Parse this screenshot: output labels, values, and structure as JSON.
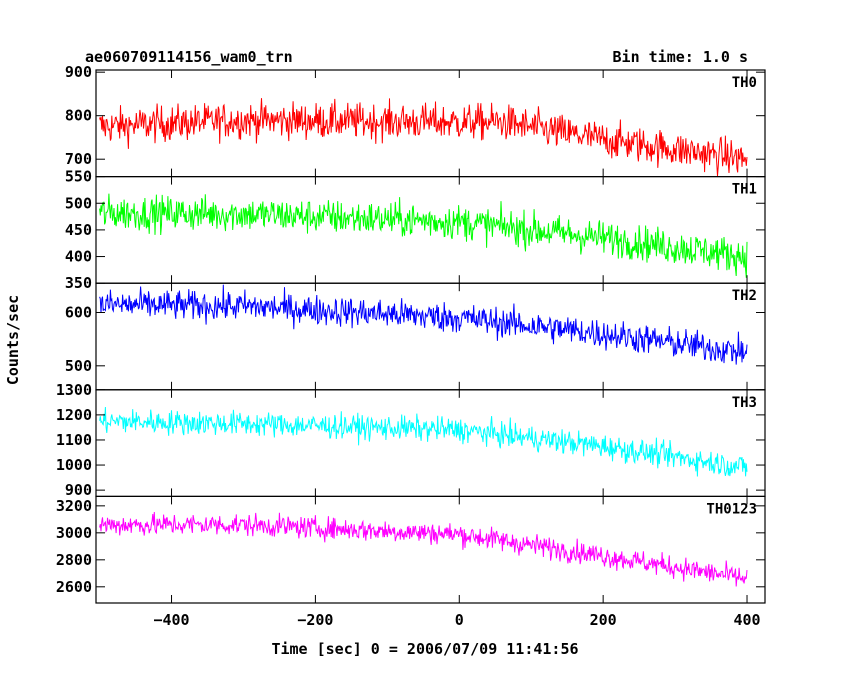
{
  "header": {
    "title": "ae060709114156_wam0_trn",
    "bin_time": "Bin time: 1.0 s"
  },
  "chart_data": {
    "type": "line",
    "xlabel": "Time [sec] 0 = 2006/07/09 11:41:56",
    "ylabel": "Counts/sec",
    "xlim": [
      -505,
      425
    ],
    "x_ticks": [
      -400,
      -200,
      0,
      200,
      400
    ],
    "x_range": [
      -500,
      400
    ],
    "x_step": 1,
    "grid": false,
    "panels": [
      {
        "name": "TH0",
        "color": "#ff0000",
        "ylim": [
          660,
          905
        ],
        "y_ticks": [
          700,
          800,
          900
        ],
        "trend": [
          [
            -500,
            775
          ],
          [
            -300,
            790
          ],
          [
            0,
            785
          ],
          [
            60,
            785
          ],
          [
            200,
            745
          ],
          [
            400,
            700
          ]
        ],
        "noise": 38
      },
      {
        "name": "TH1",
        "color": "#00ff00",
        "ylim": [
          350,
          550
        ],
        "y_ticks": [
          350,
          400,
          450,
          500,
          550
        ],
        "trend": [
          [
            -500,
            482
          ],
          [
            -300,
            480
          ],
          [
            0,
            465
          ],
          [
            200,
            435
          ],
          [
            400,
            400
          ]
        ],
        "noise": 30
      },
      {
        "name": "TH2",
        "color": "#0000ff",
        "ylim": [
          455,
          655
        ],
        "y_ticks": [
          500,
          600
        ],
        "trend": [
          [
            -500,
            615
          ],
          [
            -300,
            612
          ],
          [
            0,
            590
          ],
          [
            200,
            560
          ],
          [
            400,
            525
          ]
        ],
        "noise": 26
      },
      {
        "name": "TH3",
        "color": "#00ffff",
        "ylim": [
          875,
          1300
        ],
        "y_ticks": [
          900,
          1000,
          1100,
          1200,
          1300
        ],
        "trend": [
          [
            -500,
            1175
          ],
          [
            -300,
            1165
          ],
          [
            0,
            1140
          ],
          [
            200,
            1075
          ],
          [
            400,
            990
          ]
        ],
        "noise": 45
      },
      {
        "name": "TH0123",
        "color": "#ff00ff",
        "ylim": [
          2480,
          3270
        ],
        "y_ticks": [
          2600,
          2800,
          3000,
          3200
        ],
        "trend": [
          [
            -500,
            3060
          ],
          [
            -300,
            3060
          ],
          [
            0,
            2990
          ],
          [
            200,
            2830
          ],
          [
            400,
            2660
          ]
        ],
        "noise": 75
      }
    ]
  }
}
